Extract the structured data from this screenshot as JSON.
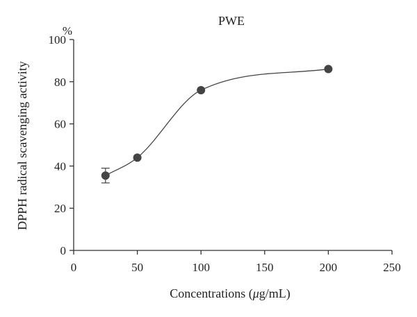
{
  "chart_data": {
    "type": "scatter",
    "title": "PWE",
    "xlabel_prefix": "Concentrations (",
    "xlabel_mu": "μ",
    "xlabel_suffix": "g/mL)",
    "ylabel": "DPPH radical scavenging activity",
    "y_unit": "%",
    "xlim": [
      0,
      250
    ],
    "ylim": [
      0,
      100
    ],
    "x_ticks": [
      0,
      50,
      100,
      150,
      200,
      250
    ],
    "y_ticks": [
      0,
      20,
      40,
      60,
      80,
      100
    ],
    "grid": false,
    "series": [
      {
        "x": [
          25,
          50,
          100,
          200
        ],
        "y": [
          35.5,
          44,
          76,
          86
        ],
        "error": [
          3.5,
          0,
          0,
          0
        ]
      }
    ],
    "fit_curve": true
  }
}
